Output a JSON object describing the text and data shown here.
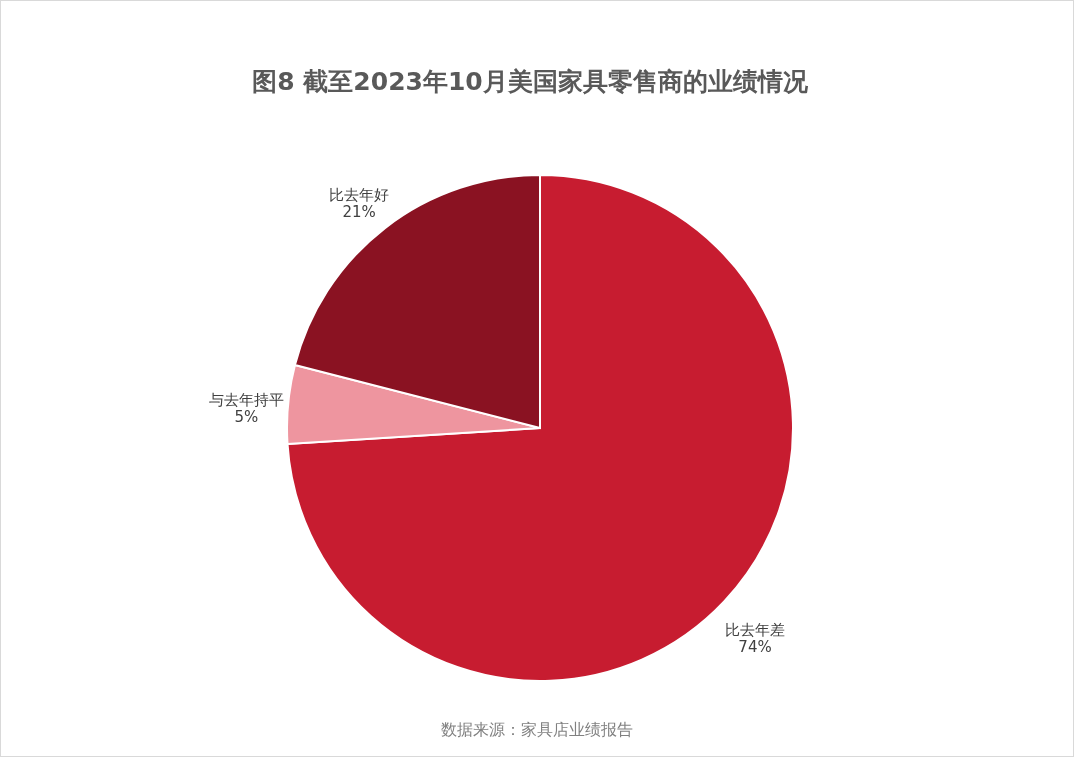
{
  "chart_data": {
    "type": "pie",
    "title": "图8  截至2023年10月美国家具零售商的业绩情况",
    "categories": [
      "比去年差",
      "与去年持平",
      "比去年好"
    ],
    "values": [
      74,
      5,
      21
    ],
    "value_labels": [
      "74%",
      "5%",
      "21%"
    ],
    "colors": [
      "#c71c30",
      "#ee959f",
      "#8a1222"
    ],
    "annotations": [
      "数据来源：家具店业绩报告"
    ]
  }
}
